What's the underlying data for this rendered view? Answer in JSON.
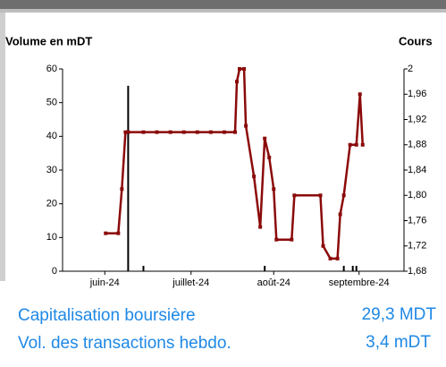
{
  "chart_data": {
    "type": "line",
    "ylabel": "Volume en mDT",
    "y2label": "Cours",
    "xlim": [
      0,
      380
    ],
    "xticks": [
      {
        "value": 47,
        "label": "juin-24"
      },
      {
        "value": 143,
        "label": "juillet-24"
      },
      {
        "value": 235,
        "label": "août-24"
      },
      {
        "value": 330,
        "label": "septembre-24"
      }
    ],
    "ylim": [
      0,
      60
    ],
    "yticks": [
      0,
      10,
      20,
      30,
      40,
      50,
      60
    ],
    "y2lim": [
      1.68,
      2
    ],
    "y2ticks": [
      {
        "value": 1.68,
        "label": "1,68"
      },
      {
        "value": 1.72,
        "label": "1,72"
      },
      {
        "value": 1.76,
        "label": "1,76"
      },
      {
        "value": 1.8,
        "label": "1,80"
      },
      {
        "value": 1.84,
        "label": "1,84"
      },
      {
        "value": 1.88,
        "label": "1,88"
      },
      {
        "value": 1.92,
        "label": "1,92"
      },
      {
        "value": 1.96,
        "label": "1,96"
      },
      2
    ],
    "series": [
      {
        "type": "bar",
        "color": "#000000",
        "x": [
          73,
          90,
          225,
          313,
          323,
          327
        ],
        "values": [
          55,
          1.6,
          1.6,
          1.6,
          1.6,
          1.6
        ]
      },
      {
        "type": "line",
        "axis": "y2",
        "color": "#8b0a0a",
        "x": [
          48,
          62,
          66,
          70,
          73,
          90,
          105,
          120,
          135,
          150,
          165,
          180,
          192,
          194,
          197,
          202,
          204,
          213,
          220,
          225,
          230,
          235,
          238,
          255,
          258,
          287,
          290,
          298,
          306,
          309,
          313,
          320,
          327,
          331,
          334
        ],
        "values": [
          1.74,
          1.74,
          1.81,
          1.9,
          1.9,
          1.9,
          1.9,
          1.9,
          1.9,
          1.9,
          1.9,
          1.9,
          1.9,
          1.98,
          2,
          2,
          1.91,
          1.83,
          1.75,
          1.89,
          1.86,
          1.81,
          1.73,
          1.73,
          1.8,
          1.8,
          1.72,
          1.7,
          1.7,
          1.77,
          1.8,
          1.88,
          1.88,
          1.96,
          1.88
        ]
      }
    ]
  },
  "stats": [
    {
      "label": "Capitalisation boursière",
      "value": "29,3 MDT"
    },
    {
      "label": "Vol. des transactions hebdo.",
      "value": "3,4 mDT"
    }
  ]
}
